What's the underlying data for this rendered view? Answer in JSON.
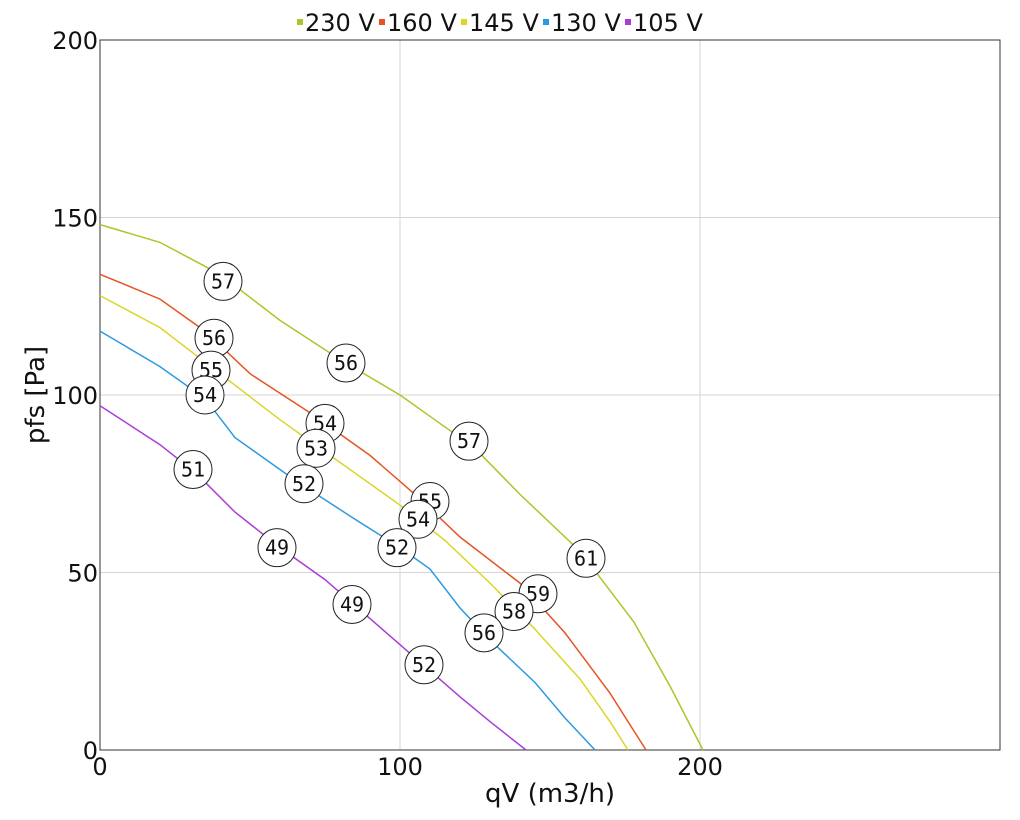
{
  "chart_data": {
    "type": "line",
    "xlabel": "qV (m3/h)",
    "ylabel": "pfs [Pa]",
    "xlim": [
      0,
      300
    ],
    "ylim": [
      0,
      200
    ],
    "x_ticks": [
      "0",
      "100",
      "200"
    ],
    "y_ticks": [
      "0",
      "50",
      "100",
      "150",
      "200"
    ],
    "grid": true,
    "legend_position": "top",
    "series": [
      {
        "name": "230 V",
        "color": "#a7c82a",
        "points": [
          [
            0,
            148
          ],
          [
            20,
            143
          ],
          [
            40,
            134
          ],
          [
            60,
            121
          ],
          [
            80,
            110
          ],
          [
            100,
            100
          ],
          [
            110,
            94
          ],
          [
            125,
            85
          ],
          [
            140,
            72
          ],
          [
            160,
            56
          ],
          [
            178,
            36
          ],
          [
            190,
            18
          ],
          [
            201,
            0
          ]
        ],
        "labels": [
          {
            "x": 41,
            "y": 132,
            "text": "57"
          },
          {
            "x": 82,
            "y": 109,
            "text": "56"
          },
          {
            "x": 123,
            "y": 87,
            "text": "57"
          },
          {
            "x": 162,
            "y": 54,
            "text": "61"
          }
        ]
      },
      {
        "name": "160 V",
        "color": "#e65424",
        "points": [
          [
            0,
            134
          ],
          [
            20,
            127
          ],
          [
            35,
            118
          ],
          [
            50,
            106
          ],
          [
            70,
            95
          ],
          [
            90,
            83
          ],
          [
            105,
            72
          ],
          [
            120,
            60
          ],
          [
            140,
            47
          ],
          [
            155,
            33
          ],
          [
            170,
            16
          ],
          [
            182,
            0
          ]
        ],
        "labels": [
          {
            "x": 38,
            "y": 116,
            "text": "56"
          },
          {
            "x": 75,
            "y": 92,
            "text": "54"
          },
          {
            "x": 110,
            "y": 70,
            "text": "55"
          },
          {
            "x": 146,
            "y": 44,
            "text": "59"
          }
        ]
      },
      {
        "name": "145 V",
        "color": "#dcd628",
        "points": [
          [
            0,
            128
          ],
          [
            20,
            119
          ],
          [
            40,
            106
          ],
          [
            60,
            93
          ],
          [
            80,
            81
          ],
          [
            100,
            69
          ],
          [
            115,
            59
          ],
          [
            130,
            47
          ],
          [
            145,
            34
          ],
          [
            160,
            20
          ],
          [
            170,
            8
          ],
          [
            176,
            0
          ]
        ],
        "labels": [
          {
            "x": 37,
            "y": 107,
            "text": "55"
          },
          {
            "x": 72,
            "y": 85,
            "text": "53"
          },
          {
            "x": 106,
            "y": 65,
            "text": "54"
          },
          {
            "x": 138,
            "y": 39,
            "text": "58"
          }
        ]
      },
      {
        "name": "130 V",
        "color": "#2b9be0",
        "points": [
          [
            0,
            118
          ],
          [
            20,
            108
          ],
          [
            35,
            99
          ],
          [
            45,
            88
          ],
          [
            65,
            76
          ],
          [
            85,
            65
          ],
          [
            100,
            57
          ],
          [
            110,
            51
          ],
          [
            120,
            40
          ],
          [
            130,
            31
          ],
          [
            145,
            19
          ],
          [
            155,
            9
          ],
          [
            165,
            0
          ]
        ],
        "labels": [
          {
            "x": 35,
            "y": 100,
            "text": "54"
          },
          {
            "x": 68,
            "y": 75,
            "text": "52"
          },
          {
            "x": 99,
            "y": 57,
            "text": "52"
          },
          {
            "x": 128,
            "y": 33,
            "text": "56"
          }
        ]
      },
      {
        "name": "105 V",
        "color": "#a83ed6",
        "points": [
          [
            0,
            97
          ],
          [
            20,
            86
          ],
          [
            32,
            78
          ],
          [
            45,
            67
          ],
          [
            60,
            57
          ],
          [
            75,
            48
          ],
          [
            90,
            37
          ],
          [
            105,
            26
          ],
          [
            120,
            15
          ],
          [
            130,
            8
          ],
          [
            142,
            0
          ]
        ],
        "labels": [
          {
            "x": 31,
            "y": 79,
            "text": "51"
          },
          {
            "x": 59,
            "y": 57,
            "text": "49"
          },
          {
            "x": 84,
            "y": 41,
            "text": "49"
          },
          {
            "x": 108,
            "y": 24,
            "text": "52"
          }
        ]
      }
    ]
  }
}
